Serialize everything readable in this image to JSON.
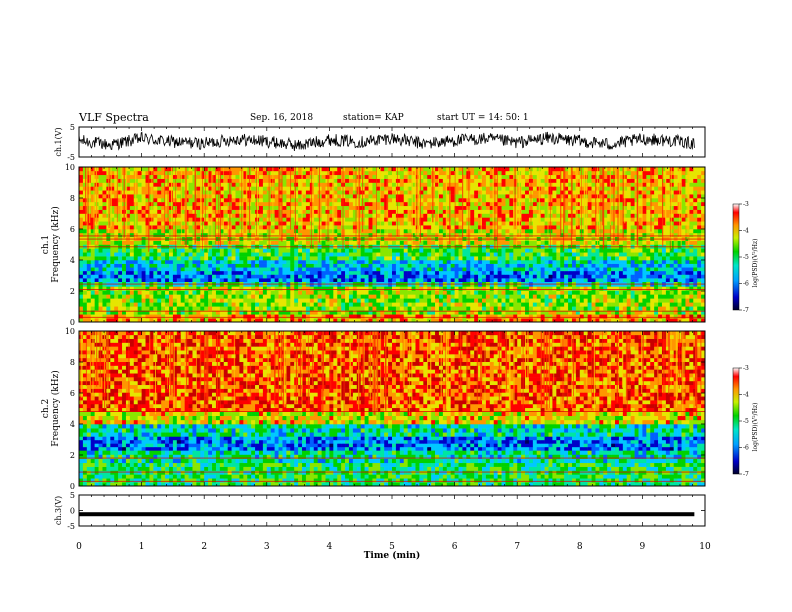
{
  "header": {
    "title": "VLF Spectra",
    "date": "Sep. 16, 2018",
    "station": "station= KAP",
    "start": "start  UT  =   14: 50: 1"
  },
  "colors": {
    "spectrogram_palette": [
      "#00005a",
      "#0000c8",
      "#0060ff",
      "#00c8ff",
      "#00e6a0",
      "#00d200",
      "#8ae600",
      "#e6e600",
      "#ff9600",
      "#ff0000",
      "#c80000"
    ],
    "trace": "#000000"
  },
  "chart_data": [
    {
      "type": "line",
      "name": "ch1-waveform",
      "ylabel": "ch.1(V)",
      "ylim": [
        -5,
        5
      ],
      "yticks": [
        "5",
        "-5"
      ],
      "xlim": [
        0,
        9.83
      ],
      "baseline": 0.3,
      "amplitude": 2.6,
      "x": [
        0,
        0.5,
        1,
        1.5,
        2,
        2.5,
        3,
        3.5,
        4,
        4.5,
        5,
        5.5,
        6,
        6.5,
        7,
        7.5,
        8,
        8.5,
        9,
        9.5,
        9.8
      ],
      "y": [
        0.5,
        -1.0,
        1.2,
        0.0,
        -0.5,
        1.0,
        0.2,
        -1.2,
        0.8,
        0.0,
        1.3,
        -0.6,
        0.5,
        1.1,
        -0.2,
        1.4,
        0.3,
        -0.8,
        1.0,
        0.4,
        -0.5
      ]
    },
    {
      "type": "heatmap",
      "name": "ch1-spectrogram",
      "ylabel": "ch.1\nFrequency (kHz)",
      "ylim": [
        0,
        10
      ],
      "yticks": [
        "0",
        "2",
        "4",
        "6",
        "8",
        "10"
      ],
      "xlim": [
        0,
        10
      ],
      "colorbar": {
        "label": "log(PSD)(V²/Hz)",
        "ticks": [
          "-3",
          "-4",
          "-5",
          "-6",
          "-7"
        ],
        "range": [
          -7,
          -3
        ]
      },
      "bands": [
        {
          "from_khz": 0.0,
          "to_khz": 0.5,
          "log_psd": -4.0
        },
        {
          "from_khz": 0.5,
          "to_khz": 2.3,
          "log_psd": -4.6
        },
        {
          "from_khz": 2.3,
          "to_khz": 2.6,
          "log_psd": -5.3
        },
        {
          "from_khz": 2.6,
          "to_khz": 3.3,
          "log_psd": -6.0
        },
        {
          "from_khz": 3.3,
          "to_khz": 4.0,
          "log_psd": -5.6
        },
        {
          "from_khz": 4.0,
          "to_khz": 5.0,
          "log_psd": -5.0
        },
        {
          "from_khz": 5.0,
          "to_khz": 6.0,
          "log_psd": -4.4
        },
        {
          "from_khz": 6.0,
          "to_khz": 10.0,
          "log_psd": -4.1
        }
      ],
      "lines_khz": [
        0.3,
        0.7,
        2.1,
        2.45,
        4.85,
        5.35,
        5.55
      ]
    },
    {
      "type": "heatmap",
      "name": "ch2-spectrogram",
      "ylabel": "ch.2\nFrequency (kHz)",
      "ylim": [
        0,
        10
      ],
      "yticks": [
        "0",
        "2",
        "4",
        "6",
        "8",
        "10"
      ],
      "xlim": [
        0,
        10
      ],
      "colorbar": {
        "label": "log(PSD)(V²/Hz)",
        "ticks": [
          "-3",
          "-4",
          "-5",
          "-6",
          "-7"
        ],
        "range": [
          -7,
          -3
        ]
      },
      "bands": [
        {
          "from_khz": 0.0,
          "to_khz": 1.5,
          "log_psd": -5.1
        },
        {
          "from_khz": 1.5,
          "to_khz": 2.3,
          "log_psd": -5.4
        },
        {
          "from_khz": 2.3,
          "to_khz": 3.2,
          "log_psd": -6.0
        },
        {
          "from_khz": 3.2,
          "to_khz": 4.0,
          "log_psd": -5.4
        },
        {
          "from_khz": 4.0,
          "to_khz": 4.8,
          "log_psd": -4.3
        },
        {
          "from_khz": 4.8,
          "to_khz": 10.0,
          "log_psd": -3.7
        }
      ],
      "lines_khz": [
        0.3,
        0.9,
        1.8,
        4.8
      ]
    },
    {
      "type": "line",
      "name": "ch3-waveform",
      "ylabel": "ch.3(V)",
      "ylim": [
        -5,
        5
      ],
      "yticks": [
        "5",
        "0",
        "-5"
      ],
      "xlim": [
        0,
        9.83
      ],
      "x": [
        0,
        9.83
      ],
      "y": [
        -1.2,
        -1.2
      ]
    }
  ],
  "xaxis": {
    "label": "Time  (min)",
    "ticks": [
      "0",
      "1",
      "2",
      "3",
      "4",
      "5",
      "6",
      "7",
      "8",
      "9",
      "10"
    ],
    "range": [
      0,
      10
    ]
  }
}
